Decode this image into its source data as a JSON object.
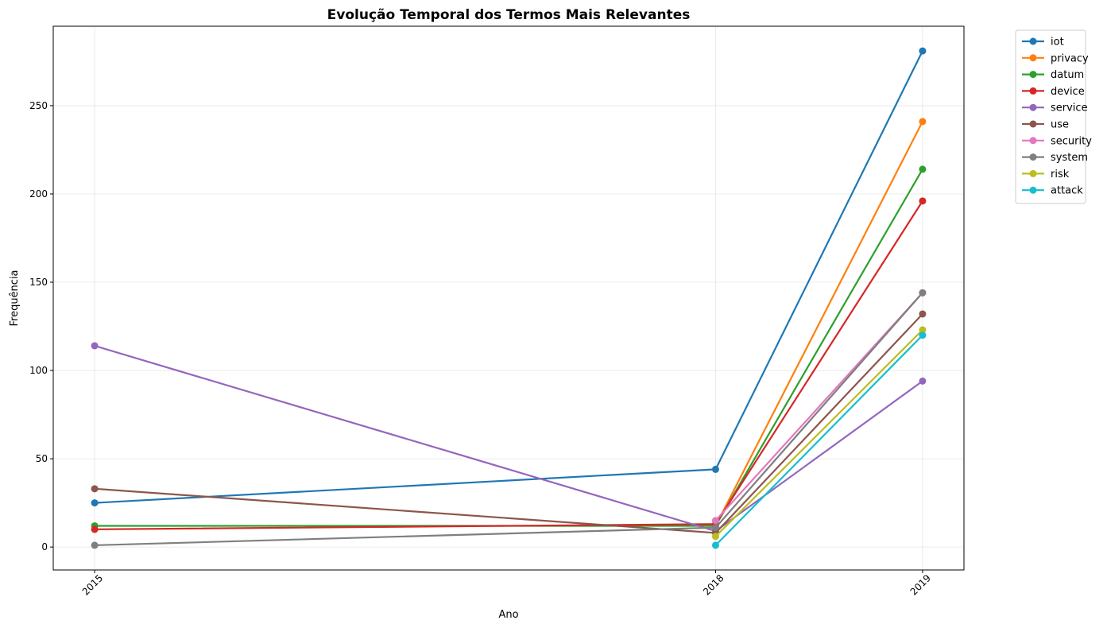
{
  "chart_data": {
    "type": "line",
    "title": "Evolução Temporal dos Termos Mais Relevantes",
    "xlabel": "Ano",
    "ylabel": "Frequência",
    "x": [
      2015,
      2018,
      2019
    ],
    "x_tick_labels": [
      "2015",
      "2018",
      "2019"
    ],
    "x_tick_rotation": 45,
    "xlim": [
      2014.8,
      2019.2
    ],
    "ylim": [
      -13,
      295
    ],
    "y_ticks": [
      0,
      50,
      100,
      150,
      200,
      250
    ],
    "grid": true,
    "legend_position": "outside-top-right",
    "markers": true,
    "series": [
      {
        "name": "iot",
        "color": "#1f77b4",
        "values": [
          25,
          44,
          281
        ]
      },
      {
        "name": "privacy",
        "color": "#ff7f0e",
        "values": [
          null,
          12,
          241
        ]
      },
      {
        "name": "datum",
        "color": "#2ca02c",
        "values": [
          12,
          12,
          214
        ]
      },
      {
        "name": "device",
        "color": "#d62728",
        "values": [
          10,
          13,
          196
        ]
      },
      {
        "name": "service",
        "color": "#9467bd",
        "values": [
          114,
          9,
          94
        ]
      },
      {
        "name": "use",
        "color": "#8c564b",
        "values": [
          33,
          8,
          132
        ]
      },
      {
        "name": "security",
        "color": "#e377c2",
        "values": [
          null,
          15,
          144
        ]
      },
      {
        "name": "system",
        "color": "#7f7f7f",
        "values": [
          1,
          11,
          144
        ]
      },
      {
        "name": "risk",
        "color": "#bcbd22",
        "values": [
          null,
          6,
          123
        ]
      },
      {
        "name": "attack",
        "color": "#17becf",
        "values": [
          null,
          1,
          120
        ]
      }
    ]
  }
}
